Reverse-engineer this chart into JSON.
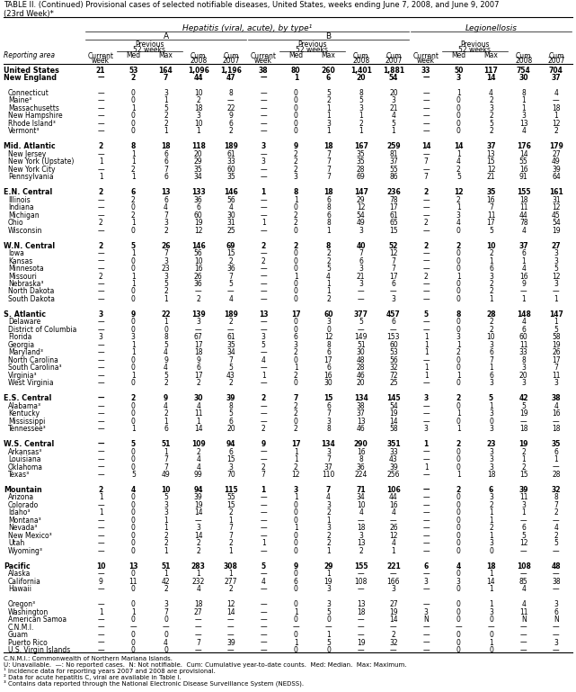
{
  "title_line1": "TABLE II. (Continued) Provisional cases of selected notifiable diseases, United States, weeks ending June 7, 2008, and June 9, 2007",
  "title_line2": "(23rd Week)*",
  "footnotes": [
    "C.N.M.I.: Commonwealth of Northern Mariana Islands.",
    "U: Unavailable.  —: No reported cases.  N: Not notifiable.  Cum: Cumulative year-to-date counts.  Med: Median.  Max: Maximum.",
    "¹ Incidence data for reporting years 2007 and 2008 are provisional.",
    "² Data for acute hepatitis C, viral are available in Table I.",
    "³ Contains data reported through the National Electronic Disease Surveillance System (NEDSS)."
  ],
  "rows": [
    [
      "United States",
      "21",
      "53",
      "164",
      "1,096",
      "1,196",
      "38",
      "80",
      "260",
      "1,401",
      "1,881",
      "33",
      "50",
      "117",
      "754",
      "704"
    ],
    [
      "New England",
      "—",
      "2",
      "7",
      "44",
      "47",
      "—",
      "1",
      "6",
      "20",
      "54",
      "—",
      "3",
      "14",
      "30",
      "37"
    ],
    [
      "Connecticut",
      "—",
      "0",
      "3",
      "10",
      "8",
      "—",
      "0",
      "5",
      "8",
      "20",
      "—",
      "1",
      "4",
      "8",
      "4"
    ],
    [
      "Maine³",
      "—",
      "0",
      "1",
      "2",
      "—",
      "—",
      "0",
      "2",
      "5",
      "3",
      "—",
      "0",
      "2",
      "1",
      "—"
    ],
    [
      "Massachusetts",
      "—",
      "1",
      "5",
      "18",
      "22",
      "—",
      "0",
      "1",
      "3",
      "21",
      "—",
      "0",
      "3",
      "1",
      "18"
    ],
    [
      "New Hampshire",
      "—",
      "0",
      "2",
      "3",
      "9",
      "—",
      "0",
      "1",
      "1",
      "4",
      "—",
      "0",
      "2",
      "3",
      "1"
    ],
    [
      "Rhode Island³",
      "—",
      "0",
      "2",
      "10",
      "6",
      "—",
      "0",
      "3",
      "2",
      "5",
      "—",
      "0",
      "5",
      "13",
      "12"
    ],
    [
      "Vermont³",
      "—",
      "0",
      "1",
      "1",
      "2",
      "—",
      "0",
      "1",
      "1",
      "1",
      "—",
      "0",
      "2",
      "4",
      "2"
    ],
    [
      "Mid. Atlantic",
      "2",
      "8",
      "18",
      "118",
      "189",
      "3",
      "9",
      "18",
      "167",
      "259",
      "14",
      "14",
      "37",
      "176",
      "179"
    ],
    [
      "New Jersey",
      "—",
      "1",
      "6",
      "20",
      "61",
      "—",
      "2",
      "7",
      "35",
      "81",
      "—",
      "1",
      "13",
      "14",
      "27"
    ],
    [
      "New York (Upstate)",
      "1",
      "1",
      "6",
      "29",
      "33",
      "3",
      "2",
      "7",
      "35",
      "37",
      "7",
      "4",
      "15",
      "55",
      "49"
    ],
    [
      "New York City",
      "—",
      "2",
      "7",
      "35",
      "60",
      "—",
      "2",
      "7",
      "28",
      "55",
      "—",
      "2",
      "12",
      "16",
      "39"
    ],
    [
      "Pennsylvania",
      "1",
      "1",
      "6",
      "34",
      "35",
      "—",
      "3",
      "7",
      "69",
      "86",
      "7",
      "5",
      "21",
      "91",
      "64"
    ],
    [
      "E.N. Central",
      "2",
      "6",
      "13",
      "133",
      "146",
      "1",
      "8",
      "18",
      "147",
      "236",
      "2",
      "12",
      "35",
      "155",
      "161"
    ],
    [
      "Illinois",
      "—",
      "2",
      "6",
      "36",
      "56",
      "—",
      "1",
      "6",
      "29",
      "78",
      "—",
      "2",
      "16",
      "18",
      "31"
    ],
    [
      "Indiana",
      "—",
      "0",
      "4",
      "6",
      "4",
      "—",
      "0",
      "8",
      "12",
      "17",
      "—",
      "1",
      "7",
      "11",
      "12"
    ],
    [
      "Michigan",
      "—",
      "2",
      "7",
      "60",
      "30",
      "—",
      "2",
      "6",
      "54",
      "61",
      "—",
      "3",
      "11",
      "44",
      "45"
    ],
    [
      "Ohio",
      "2",
      "1",
      "3",
      "19",
      "31",
      "1",
      "2",
      "8",
      "49",
      "65",
      "2",
      "4",
      "17",
      "78",
      "54"
    ],
    [
      "Wisconsin",
      "—",
      "0",
      "2",
      "12",
      "25",
      "—",
      "0",
      "1",
      "3",
      "15",
      "—",
      "0",
      "5",
      "4",
      "19"
    ],
    [
      "W.N. Central",
      "2",
      "5",
      "26",
      "146",
      "69",
      "2",
      "2",
      "8",
      "40",
      "52",
      "2",
      "2",
      "10",
      "37",
      "27"
    ],
    [
      "Iowa",
      "—",
      "1",
      "7",
      "56",
      "15",
      "—",
      "0",
      "2",
      "7",
      "12",
      "—",
      "0",
      "2",
      "6",
      "3"
    ],
    [
      "Kansas",
      "—",
      "0",
      "3",
      "10",
      "2",
      "2",
      "0",
      "2",
      "6",
      "7",
      "—",
      "0",
      "1",
      "1",
      "3"
    ],
    [
      "Minnesota",
      "—",
      "0",
      "23",
      "16",
      "36",
      "—",
      "0",
      "5",
      "3",
      "7",
      "—",
      "0",
      "6",
      "4",
      "5"
    ],
    [
      "Missouri",
      "2",
      "1",
      "3",
      "26",
      "7",
      "—",
      "1",
      "4",
      "21",
      "17",
      "2",
      "1",
      "3",
      "16",
      "12"
    ],
    [
      "Nebraska³",
      "—",
      "1",
      "5",
      "36",
      "5",
      "—",
      "0",
      "1",
      "3",
      "6",
      "—",
      "0",
      "2",
      "9",
      "3"
    ],
    [
      "North Dakota",
      "—",
      "0",
      "2",
      "—",
      "—",
      "—",
      "0",
      "1",
      "—",
      "—",
      "—",
      "0",
      "2",
      "—",
      "—"
    ],
    [
      "South Dakota",
      "—",
      "0",
      "1",
      "2",
      "4",
      "—",
      "0",
      "2",
      "—",
      "3",
      "—",
      "0",
      "1",
      "1",
      "1"
    ],
    [
      "S. Atlantic",
      "3",
      "9",
      "22",
      "139",
      "189",
      "13",
      "17",
      "60",
      "377",
      "457",
      "5",
      "8",
      "28",
      "148",
      "147"
    ],
    [
      "Delaware",
      "—",
      "0",
      "1",
      "3",
      "2",
      "—",
      "0",
      "3",
      "5",
      "6",
      "—",
      "0",
      "2",
      "4",
      "1"
    ],
    [
      "District of Columbia",
      "—",
      "0",
      "0",
      "—",
      "—",
      "—",
      "0",
      "0",
      "—",
      "—",
      "—",
      "0",
      "2",
      "6",
      "5"
    ],
    [
      "Florida",
      "3",
      "3",
      "8",
      "67",
      "61",
      "3",
      "6",
      "12",
      "149",
      "153",
      "1",
      "3",
      "10",
      "60",
      "58"
    ],
    [
      "Georgia",
      "—",
      "1",
      "5",
      "17",
      "35",
      "5",
      "3",
      "8",
      "51",
      "60",
      "1",
      "1",
      "3",
      "11",
      "19"
    ],
    [
      "Maryland³",
      "—",
      "1",
      "4",
      "18",
      "34",
      "—",
      "2",
      "6",
      "30",
      "53",
      "1",
      "2",
      "6",
      "33",
      "26"
    ],
    [
      "North Carolina",
      "—",
      "0",
      "9",
      "9",
      "7",
      "4",
      "0",
      "17",
      "48",
      "56",
      "—",
      "0",
      "7",
      "8",
      "17"
    ],
    [
      "South Carolina³",
      "—",
      "0",
      "4",
      "6",
      "5",
      "—",
      "1",
      "6",
      "28",
      "32",
      "1",
      "0",
      "1",
      "3",
      "7"
    ],
    [
      "Virginia³",
      "—",
      "1",
      "5",
      "17",
      "43",
      "1",
      "2",
      "16",
      "46",
      "72",
      "1",
      "1",
      "6",
      "20",
      "11"
    ],
    [
      "West Virginia",
      "—",
      "0",
      "2",
      "2",
      "2",
      "—",
      "0",
      "30",
      "20",
      "25",
      "—",
      "0",
      "3",
      "3",
      "3"
    ],
    [
      "E.S. Central",
      "—",
      "2",
      "9",
      "30",
      "39",
      "2",
      "7",
      "15",
      "134",
      "145",
      "3",
      "2",
      "5",
      "42",
      "38"
    ],
    [
      "Alabama³",
      "—",
      "0",
      "4",
      "4",
      "8",
      "—",
      "2",
      "6",
      "38",
      "54",
      "—",
      "0",
      "1",
      "5",
      "4"
    ],
    [
      "Kentucky",
      "—",
      "0",
      "2",
      "11",
      "5",
      "—",
      "2",
      "7",
      "37",
      "19",
      "—",
      "1",
      "3",
      "19",
      "16"
    ],
    [
      "Mississippi",
      "—",
      "0",
      "1",
      "1",
      "6",
      "—",
      "0",
      "3",
      "13",
      "14",
      "—",
      "0",
      "0",
      "—",
      "—"
    ],
    [
      "Tennessee³",
      "—",
      "1",
      "6",
      "14",
      "20",
      "2",
      "2",
      "8",
      "46",
      "58",
      "3",
      "1",
      "3",
      "18",
      "18"
    ],
    [
      "W.S. Central",
      "—",
      "5",
      "51",
      "109",
      "94",
      "9",
      "17",
      "134",
      "290",
      "351",
      "1",
      "2",
      "23",
      "19",
      "35"
    ],
    [
      "Arkansas³",
      "—",
      "0",
      "1",
      "2",
      "6",
      "—",
      "1",
      "3",
      "16",
      "33",
      "—",
      "0",
      "3",
      "2",
      "6"
    ],
    [
      "Louisiana",
      "—",
      "0",
      "7",
      "4",
      "15",
      "—",
      "1",
      "7",
      "8",
      "43",
      "—",
      "0",
      "3",
      "1",
      "1"
    ],
    [
      "Oklahoma",
      "—",
      "0",
      "7",
      "4",
      "3",
      "2",
      "2",
      "37",
      "36",
      "39",
      "1",
      "0",
      "3",
      "2",
      "—"
    ],
    [
      "Texas³",
      "—",
      "5",
      "49",
      "99",
      "70",
      "7",
      "12",
      "110",
      "224",
      "256",
      "—",
      "1",
      "18",
      "15",
      "28"
    ],
    [
      "Mountain",
      "2",
      "4",
      "10",
      "94",
      "115",
      "1",
      "3",
      "7",
      "71",
      "106",
      "—",
      "2",
      "6",
      "39",
      "32"
    ],
    [
      "Arizona",
      "1",
      "0",
      "5",
      "39",
      "55",
      "—",
      "1",
      "4",
      "34",
      "44",
      "—",
      "0",
      "3",
      "11",
      "8"
    ],
    [
      "Colorado",
      "—",
      "0",
      "3",
      "19",
      "15",
      "—",
      "0",
      "3",
      "10",
      "16",
      "—",
      "0",
      "2",
      "3",
      "7"
    ],
    [
      "Idaho³",
      "1",
      "0",
      "3",
      "14",
      "2",
      "—",
      "0",
      "2",
      "4",
      "4",
      "—",
      "0",
      "1",
      "1",
      "2"
    ],
    [
      "Montana³",
      "—",
      "0",
      "1",
      "—",
      "1",
      "—",
      "0",
      "1",
      "—",
      "—",
      "—",
      "0",
      "1",
      "—",
      "—"
    ],
    [
      "Nevada³",
      "—",
      "0",
      "1",
      "3",
      "7",
      "—",
      "1",
      "3",
      "18",
      "26",
      "—",
      "0",
      "2",
      "6",
      "4"
    ],
    [
      "New Mexico³",
      "—",
      "0",
      "2",
      "14",
      "7",
      "—",
      "0",
      "2",
      "3",
      "12",
      "—",
      "0",
      "1",
      "5",
      "2"
    ],
    [
      "Utah",
      "—",
      "0",
      "2",
      "2",
      "2",
      "1",
      "0",
      "2",
      "13",
      "4",
      "—",
      "0",
      "3",
      "12",
      "5"
    ],
    [
      "Wyoming³",
      "—",
      "0",
      "1",
      "2",
      "1",
      "—",
      "0",
      "1",
      "2",
      "1",
      "—",
      "0",
      "0",
      "—",
      "—"
    ],
    [
      "Pacific",
      "10",
      "13",
      "51",
      "283",
      "308",
      "5",
      "9",
      "29",
      "155",
      "221",
      "6",
      "4",
      "18",
      "108",
      "48"
    ],
    [
      "Alaska",
      "—",
      "0",
      "1",
      "1",
      "1",
      "—",
      "0",
      "1",
      "—",
      "—",
      "—",
      "0",
      "1",
      "—",
      "—"
    ],
    [
      "California",
      "9",
      "11",
      "42",
      "232",
      "277",
      "4",
      "6",
      "19",
      "108",
      "166",
      "3",
      "3",
      "14",
      "85",
      "38"
    ],
    [
      "Hawaii",
      "—",
      "0",
      "2",
      "4",
      "2",
      "—",
      "0",
      "3",
      "—",
      "3",
      "—",
      "0",
      "1",
      "4",
      "—"
    ],
    [
      "Oregon³",
      "—",
      "0",
      "3",
      "18",
      "12",
      "—",
      "0",
      "3",
      "13",
      "27",
      "—",
      "0",
      "1",
      "4",
      "3"
    ],
    [
      "Washington",
      "1",
      "1",
      "7",
      "27",
      "14",
      "—",
      "1",
      "5",
      "18",
      "19",
      "3",
      "0",
      "3",
      "11",
      "6"
    ],
    [
      "American Samoa",
      "—",
      "0",
      "0",
      "—",
      "—",
      "—",
      "0",
      "0",
      "—",
      "14",
      "N",
      "0",
      "0",
      "N",
      "N"
    ],
    [
      "C.N.M.I.",
      "—",
      "—",
      "—",
      "—",
      "—",
      "—",
      "—",
      "—",
      "—",
      "—",
      "—",
      "—",
      "—",
      "—",
      "—"
    ],
    [
      "Guam",
      "—",
      "0",
      "0",
      "—",
      "—",
      "—",
      "0",
      "1",
      "—",
      "2",
      "—",
      "0",
      "0",
      "—",
      "—"
    ],
    [
      "Puerto Rico",
      "—",
      "0",
      "4",
      "7",
      "39",
      "—",
      "1",
      "5",
      "19",
      "32",
      "—",
      "0",
      "1",
      "—",
      "3"
    ],
    [
      "U.S. Virgin Islands",
      "—",
      "0",
      "0",
      "—",
      "—",
      "—",
      "0",
      "0",
      "—",
      "—",
      "—",
      "0",
      "0",
      "—",
      "—"
    ]
  ],
  "bold_rows": [
    0,
    1,
    8,
    13,
    19,
    27,
    37,
    42,
    47,
    56
  ],
  "blank_after": [
    0,
    1,
    7,
    12,
    18,
    26,
    36,
    41,
    46,
    55,
    59
  ]
}
